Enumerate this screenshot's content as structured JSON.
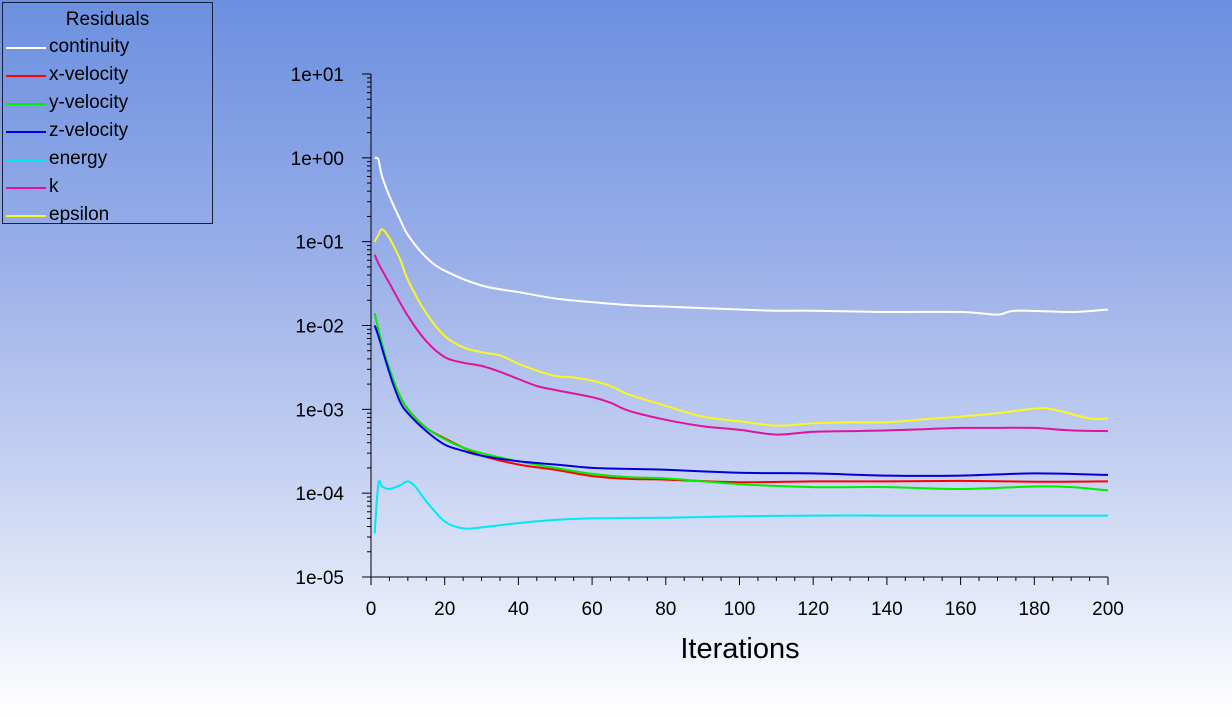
{
  "chart_data": {
    "type": "line",
    "title": "",
    "xlabel": "Iterations",
    "ylabel": "",
    "y_scale": "log",
    "xlim": [
      0,
      200
    ],
    "ylim": [
      1e-05,
      10
    ],
    "x_ticks": [
      "0",
      "20",
      "40",
      "60",
      "80",
      "100",
      "120",
      "140",
      "160",
      "180",
      "200"
    ],
    "x_tick_values": [
      0,
      20,
      40,
      60,
      80,
      100,
      120,
      140,
      160,
      180,
      200
    ],
    "y_ticks": [
      "1e-05",
      "1e-04",
      "1e-03",
      "1e-02",
      "1e-01",
      "1e+00",
      "1e+01"
    ],
    "y_tick_values": [
      1e-05,
      0.0001,
      0.001,
      0.01,
      0.1,
      1,
      10
    ],
    "legend": {
      "title": "Residuals",
      "position": "top-left"
    },
    "series": [
      {
        "name": "continuity",
        "color": "#ffffff",
        "x": [
          1,
          2,
          3,
          5,
          8,
          10,
          15,
          20,
          30,
          40,
          50,
          60,
          70,
          80,
          100,
          110,
          120,
          140,
          160,
          170,
          175,
          190,
          200
        ],
        "y": [
          1.0,
          0.95,
          0.6,
          0.35,
          0.18,
          0.12,
          0.065,
          0.045,
          0.03,
          0.025,
          0.021,
          0.019,
          0.0175,
          0.0168,
          0.0155,
          0.015,
          0.015,
          0.0145,
          0.0145,
          0.0135,
          0.015,
          0.0145,
          0.0155
        ]
      },
      {
        "name": "x-velocity",
        "color": "#ff0000",
        "x": [
          1,
          2,
          4,
          6,
          8,
          10,
          15,
          20,
          25,
          30,
          40,
          50,
          60,
          70,
          80,
          100,
          120,
          140,
          160,
          180,
          200
        ],
        "y": [
          0.01,
          0.008,
          0.004,
          0.0022,
          0.0014,
          0.001,
          0.0006,
          0.00045,
          0.00035,
          0.00028,
          0.00022,
          0.00019,
          0.00016,
          0.000148,
          0.000145,
          0.000135,
          0.000138,
          0.000138,
          0.00014,
          0.000137,
          0.000138
        ]
      },
      {
        "name": "y-velocity",
        "color": "#00ee00",
        "x": [
          1,
          2,
          4,
          6,
          8,
          10,
          15,
          20,
          25,
          30,
          40,
          50,
          60,
          70,
          80,
          100,
          120,
          140,
          160,
          180,
          190,
          200
        ],
        "y": [
          0.014,
          0.009,
          0.0042,
          0.0023,
          0.0014,
          0.001,
          0.0006,
          0.00044,
          0.00035,
          0.0003,
          0.00024,
          0.0002,
          0.00017,
          0.000155,
          0.00015,
          0.000128,
          0.000118,
          0.000118,
          0.000112,
          0.00012,
          0.000118,
          0.000108
        ]
      },
      {
        "name": "z-velocity",
        "color": "#0000dd",
        "x": [
          1,
          2,
          4,
          6,
          8,
          10,
          15,
          20,
          25,
          30,
          40,
          50,
          60,
          70,
          80,
          100,
          120,
          140,
          160,
          180,
          200
        ],
        "y": [
          0.01,
          0.0075,
          0.0038,
          0.002,
          0.0012,
          0.0009,
          0.00055,
          0.00038,
          0.00032,
          0.00028,
          0.00024,
          0.00022,
          0.0002,
          0.000195,
          0.00019,
          0.000175,
          0.000172,
          0.000162,
          0.000162,
          0.000172,
          0.000165
        ]
      },
      {
        "name": "energy",
        "color": "#00e8f0",
        "x": [
          1,
          2,
          3,
          5,
          8,
          10,
          12,
          15,
          20,
          25,
          30,
          40,
          50,
          60,
          80,
          100,
          120,
          140,
          160,
          180,
          200
        ],
        "y": [
          3.3e-05,
          0.00013,
          0.00012,
          0.000112,
          0.000125,
          0.000138,
          0.00012,
          8e-05,
          4.6e-05,
          3.8e-05,
          3.9e-05,
          4.4e-05,
          4.8e-05,
          5e-05,
          5.1e-05,
          5.3e-05,
          5.4e-05,
          5.4e-05,
          5.4e-05,
          5.4e-05,
          5.4e-05
        ]
      },
      {
        "name": "k",
        "color": "#e0149b",
        "x": [
          1,
          2,
          5,
          10,
          15,
          20,
          25,
          30,
          35,
          40,
          45,
          50,
          60,
          65,
          70,
          80,
          90,
          100,
          110,
          120,
          130,
          140,
          150,
          160,
          170,
          180,
          190,
          200
        ],
        "y": [
          0.07,
          0.055,
          0.032,
          0.013,
          0.0065,
          0.0042,
          0.0036,
          0.0033,
          0.0028,
          0.0023,
          0.0019,
          0.0017,
          0.0014,
          0.0012,
          0.00096,
          0.00075,
          0.00063,
          0.00057,
          0.0005,
          0.00054,
          0.00055,
          0.00056,
          0.00058,
          0.0006,
          0.0006,
          0.0006,
          0.00056,
          0.00055
        ]
      },
      {
        "name": "epsilon",
        "color": "#f8f822",
        "x": [
          1,
          2,
          3,
          5,
          8,
          10,
          15,
          20,
          25,
          30,
          35,
          40,
          45,
          50,
          55,
          60,
          65,
          70,
          80,
          90,
          100,
          110,
          120,
          130,
          140,
          150,
          160,
          170,
          180,
          185,
          195,
          200
        ],
        "y": [
          0.1,
          0.12,
          0.14,
          0.11,
          0.06,
          0.035,
          0.014,
          0.0075,
          0.0055,
          0.0048,
          0.0044,
          0.0035,
          0.0029,
          0.0025,
          0.0024,
          0.0022,
          0.0019,
          0.0015,
          0.0011,
          0.00082,
          0.00072,
          0.00064,
          0.00068,
          0.0007,
          0.0007,
          0.00076,
          0.00082,
          0.0009,
          0.00102,
          0.001,
          0.00078,
          0.00078
        ]
      }
    ]
  }
}
